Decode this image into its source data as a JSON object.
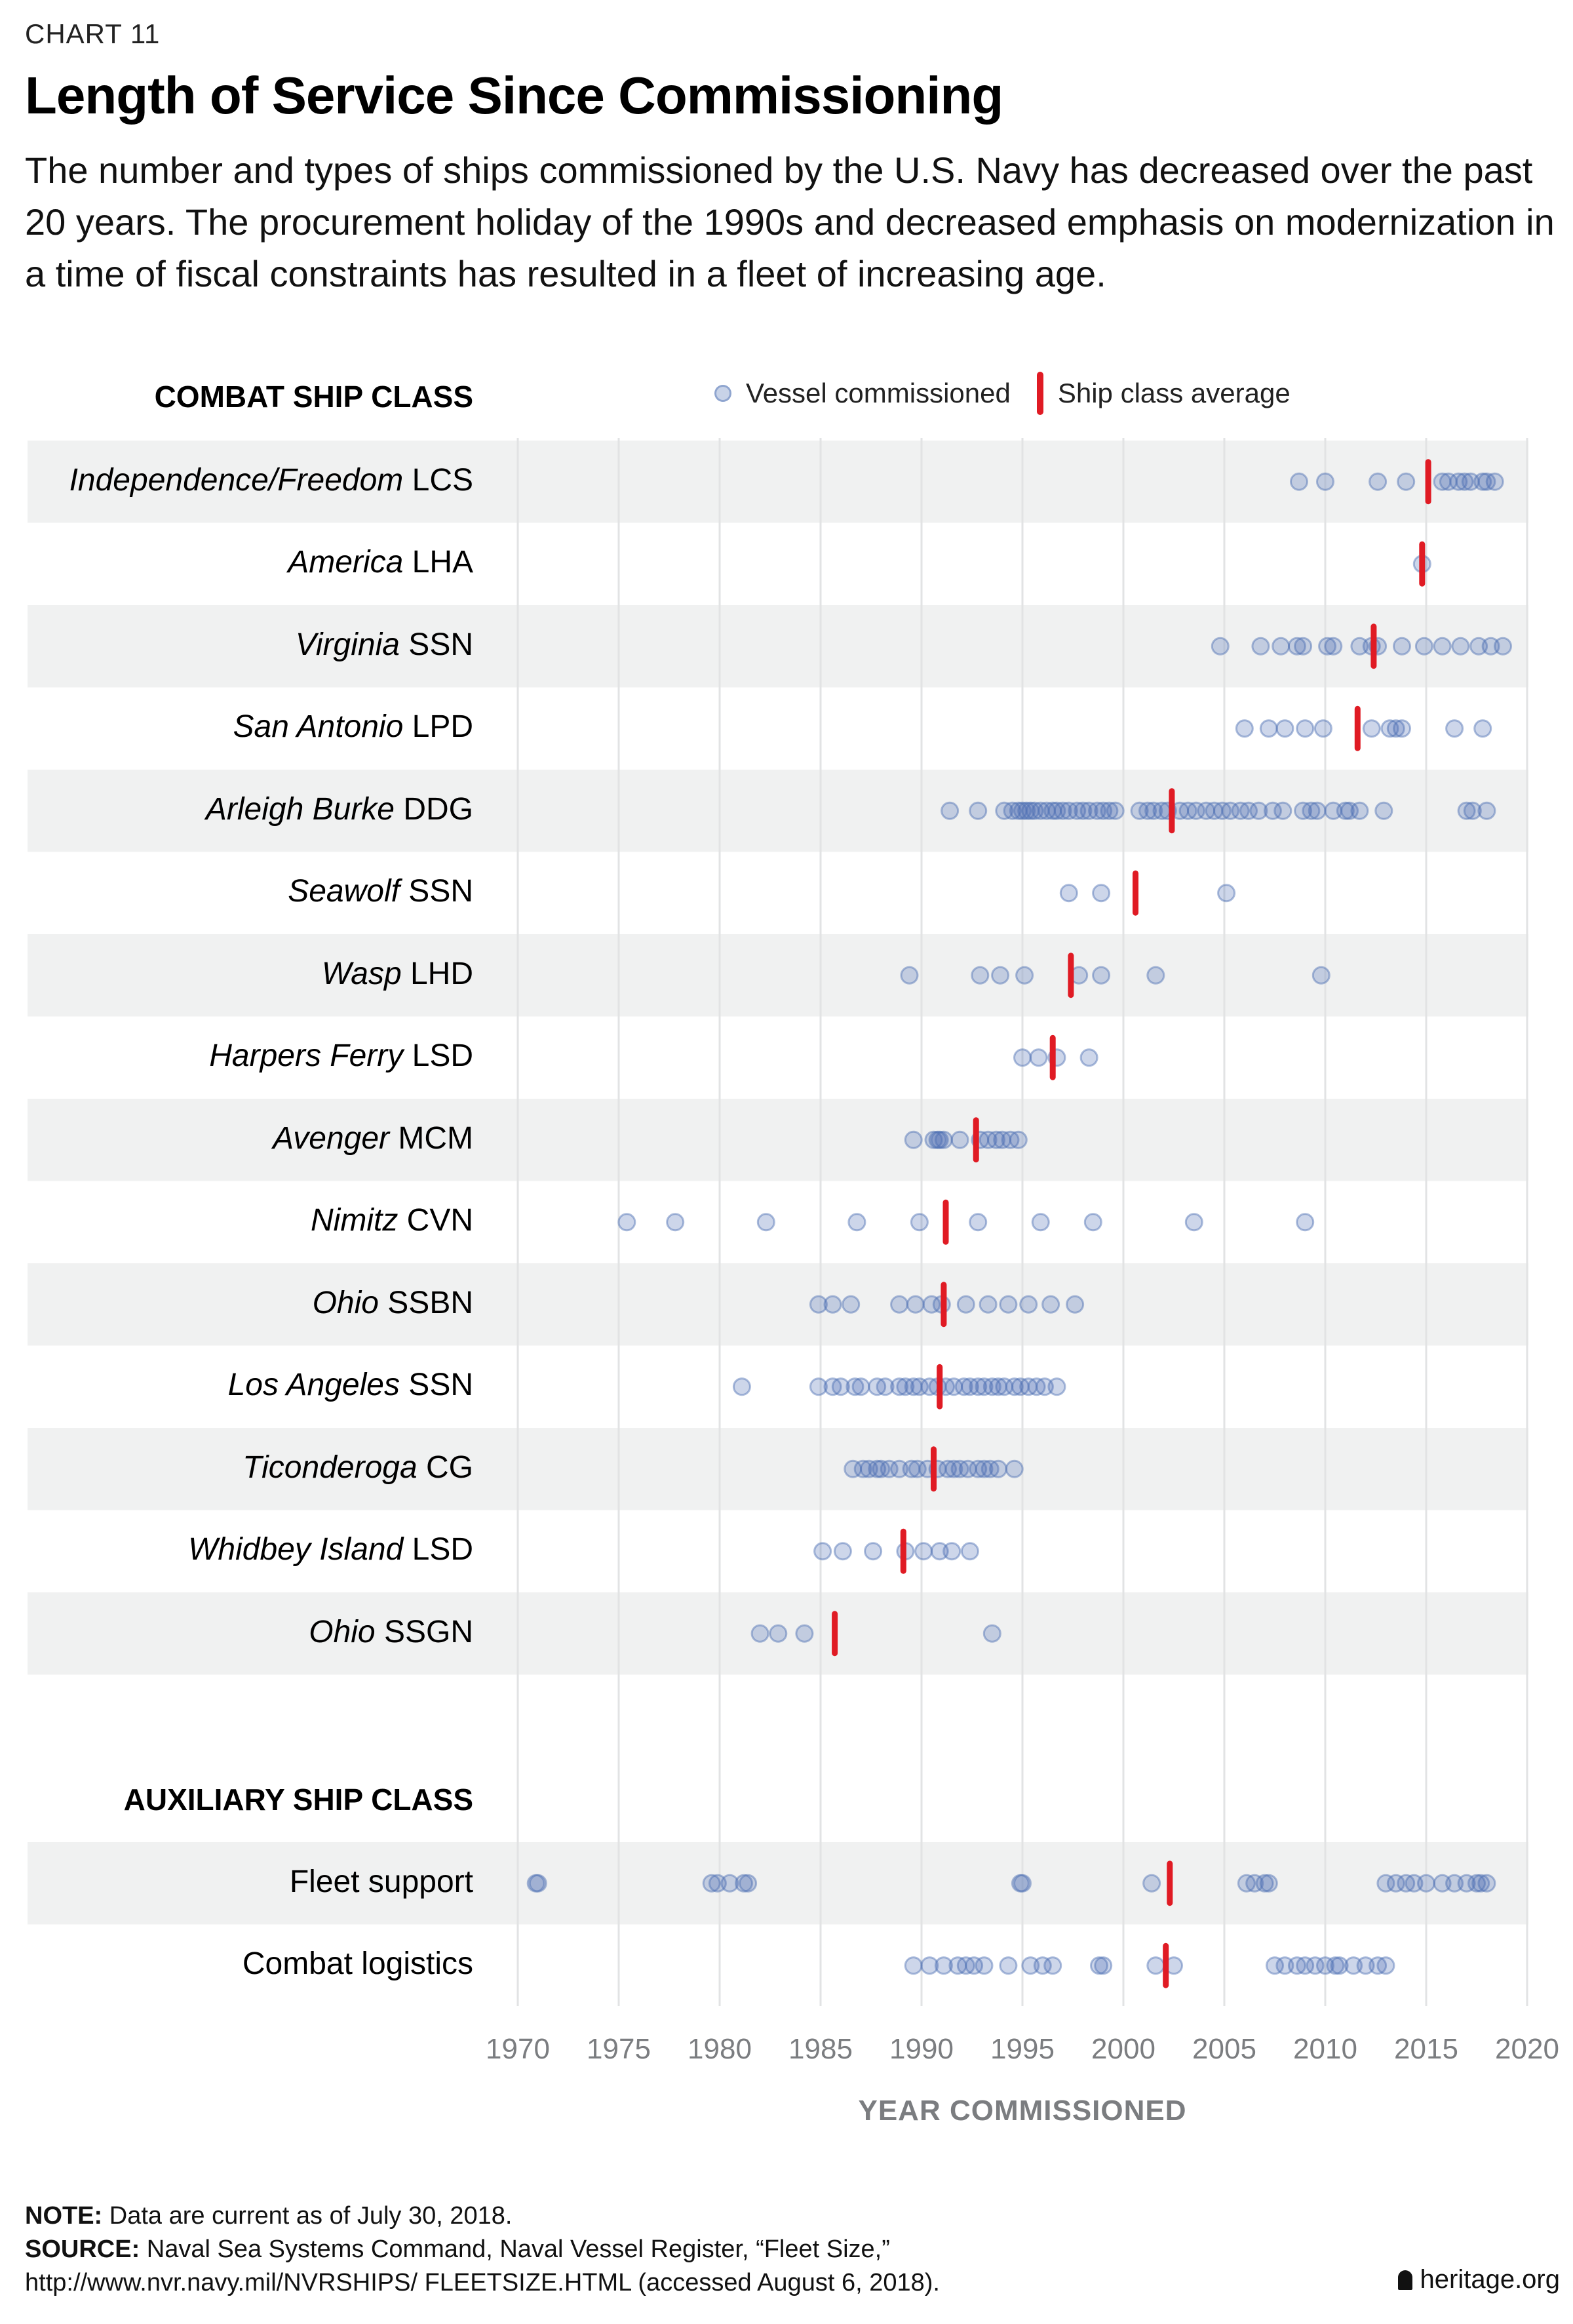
{
  "header": {
    "kicker": "CHART 11",
    "title": "Length of Service Since Commissioning",
    "subtitle": "The number and types of ships commissioned by the U.S. Navy has decreased over the past 20 years. The procurement holiday of the 1990s and decreased emphasis on modernization in a time of fiscal constraints has resulted in a fleet of increasing age."
  },
  "legend": {
    "vessel_label": "Vessel commissioned",
    "average_label": "Ship class average"
  },
  "footer": {
    "note_label": "NOTE:",
    "note_text": " Data are current as of July 30, 2018.",
    "source_label": "SOURCE:",
    "source_text": " Naval Sea Systems Command, Naval Vessel Register, “Fleet Size,”",
    "source_url": "http://www.nvr.navy.mil/NVRSHIPS/ FLEETSIZE.HTML (accessed August 6, 2018).",
    "brand": "heritage.org"
  },
  "colors": {
    "dot_fill": "#4a6db2",
    "average": "#e01b24",
    "band": "#f0f1f1",
    "grid": "#e2e3e4",
    "axis_text": "#7b7d80"
  },
  "chart_data": {
    "type": "scatter",
    "title": "Length of Service Since Commissioning",
    "xlabel": "YEAR COMMISSIONED",
    "ylabel": "",
    "xlim": [
      1970,
      2020
    ],
    "xticks": [
      1970,
      1975,
      1980,
      1985,
      1990,
      1995,
      2000,
      2005,
      2010,
      2015,
      2020
    ],
    "grid": true,
    "legend_position": "top",
    "groups": [
      {
        "name": "COMBAT SHIP CLASS",
        "series": [
          {
            "italic": "Independence/Freedom",
            "suffix": " LCS",
            "average": 2015.1,
            "values": [
              2008.7,
              2010.0,
              2012.6,
              2014.0,
              2015.8,
              2016.1,
              2016.6,
              2016.9,
              2017.2,
              2017.8,
              2018.0,
              2018.4
            ]
          },
          {
            "italic": "America",
            "suffix": " LHA",
            "average": 2014.8,
            "values": [
              2014.8
            ]
          },
          {
            "italic": "Virginia",
            "suffix": " SSN",
            "average": 2012.4,
            "values": [
              2004.8,
              2006.8,
              2007.8,
              2008.6,
              2008.9,
              2010.1,
              2010.4,
              2011.7,
              2012.3,
              2012.6,
              2013.8,
              2014.9,
              2015.8,
              2016.7,
              2017.6,
              2018.2,
              2018.8
            ]
          },
          {
            "italic": "San Antonio",
            "suffix": " LPD",
            "average": 2011.6,
            "values": [
              2006.0,
              2007.2,
              2008.0,
              2009.0,
              2009.9,
              2012.3,
              2013.2,
              2013.5,
              2013.8,
              2016.4,
              2017.8
            ]
          },
          {
            "italic": "Arleigh Burke",
            "suffix": " DDG",
            "average": 2002.4,
            "values": [
              1991.4,
              1992.8,
              1994.1,
              1994.5,
              1994.8,
              1995.0,
              1995.2,
              1995.4,
              1995.6,
              1995.9,
              1996.2,
              1996.5,
              1996.7,
              1997.0,
              1997.3,
              1997.7,
              1998.0,
              1998.3,
              1998.7,
              1999.0,
              1999.3,
              1999.6,
              2000.8,
              2001.2,
              2001.5,
              2001.9,
              2002.2,
              2002.8,
              2003.2,
              2003.6,
              2004.1,
              2004.5,
              2004.9,
              2005.3,
              2005.8,
              2006.2,
              2006.7,
              2007.4,
              2007.9,
              2008.9,
              2009.3,
              2009.6,
              2010.4,
              2011.0,
              2011.2,
              2011.7,
              2012.9,
              2017.0,
              2017.3,
              2018.0
            ]
          },
          {
            "italic": "Seawolf",
            "suffix": " SSN",
            "average": 2000.6,
            "values": [
              1997.3,
              1998.9,
              2005.1
            ]
          },
          {
            "italic": "Wasp",
            "suffix": " LHD",
            "average": 1997.4,
            "values": [
              1989.4,
              1992.9,
              1993.9,
              1995.1,
              1997.8,
              1998.9,
              2001.6,
              2009.8
            ]
          },
          {
            "italic": "Harpers Ferry",
            "suffix": " LSD",
            "average": 1996.5,
            "values": [
              1995.0,
              1995.8,
              1996.7,
              1998.3
            ]
          },
          {
            "italic": "Avenger",
            "suffix": " MCM",
            "average": 1992.7,
            "values": [
              1989.6,
              1990.6,
              1990.8,
              1990.9,
              1991.1,
              1991.9,
              1992.9,
              1993.3,
              1993.7,
              1994.0,
              1994.4,
              1994.8
            ]
          },
          {
            "italic": "Nimitz",
            "suffix": " CVN",
            "average": 1991.2,
            "values": [
              1975.4,
              1977.8,
              1982.3,
              1986.8,
              1989.9,
              1992.8,
              1995.9,
              1998.5,
              2003.5,
              2009.0
            ]
          },
          {
            "italic": "Ohio",
            "suffix": " SSBN",
            "average": 1991.1,
            "values": [
              1984.9,
              1985.6,
              1986.5,
              1988.9,
              1989.7,
              1990.5,
              1991.0,
              1992.2,
              1993.3,
              1994.3,
              1995.3,
              1996.4,
              1997.6
            ]
          },
          {
            "italic": "Los Angeles",
            "suffix": " SSN",
            "average": 1990.9,
            "values": [
              1981.1,
              1984.9,
              1985.6,
              1986.0,
              1986.7,
              1987.0,
              1987.8,
              1988.2,
              1988.9,
              1989.2,
              1989.6,
              1989.9,
              1990.4,
              1990.8,
              1991.2,
              1991.6,
              1992.1,
              1992.4,
              1992.8,
              1993.1,
              1993.5,
              1993.8,
              1994.1,
              1994.6,
              1994.9,
              1995.3,
              1995.7,
              1996.1,
              1996.7
            ]
          },
          {
            "italic": "Ticonderoga",
            "suffix": " CG",
            "average": 1990.6,
            "values": [
              1986.6,
              1987.1,
              1987.4,
              1987.8,
              1988.0,
              1988.4,
              1988.9,
              1989.5,
              1989.8,
              1990.3,
              1990.8,
              1991.3,
              1991.6,
              1991.9,
              1992.3,
              1992.8,
              1993.1,
              1993.4,
              1993.8,
              1994.6
            ]
          },
          {
            "italic": "Whidbey Island",
            "suffix": " LSD",
            "average": 1989.1,
            "values": [
              1985.1,
              1986.1,
              1987.6,
              1989.2,
              1990.1,
              1990.9,
              1991.5,
              1992.4
            ]
          },
          {
            "italic": "Ohio",
            "suffix": " SSGN",
            "average": 1985.7,
            "values": [
              1982.0,
              1982.9,
              1984.2,
              1993.5
            ]
          }
        ]
      },
      {
        "name": "AUXILIARY SHIP CLASS",
        "series": [
          {
            "italic": "",
            "suffix": "Fleet support",
            "average": 2002.3,
            "values": [
              1970.9,
              1971.0,
              1979.6,
              1979.9,
              1980.5,
              1981.2,
              1981.4,
              1994.9,
              1995.0,
              2001.4,
              2006.1,
              2006.5,
              2007.0,
              2007.2,
              2013.0,
              2013.5,
              2014.0,
              2014.4,
              2015.0,
              2015.8,
              2016.4,
              2017.0,
              2017.5,
              2017.7,
              2018.0
            ]
          },
          {
            "italic": "",
            "suffix": "Combat logistics",
            "average": 2002.1,
            "values": [
              1989.6,
              1990.4,
              1991.1,
              1991.8,
              1992.2,
              1992.6,
              1993.1,
              1994.3,
              1995.4,
              1996.0,
              1996.5,
              1998.8,
              1999.0,
              2001.6,
              2002.5,
              2007.5,
              2008.0,
              2008.6,
              2009.0,
              2009.5,
              2010.0,
              2010.5,
              2010.7,
              2011.4,
              2012.0,
              2012.6,
              2013.0
            ]
          }
        ]
      }
    ]
  }
}
